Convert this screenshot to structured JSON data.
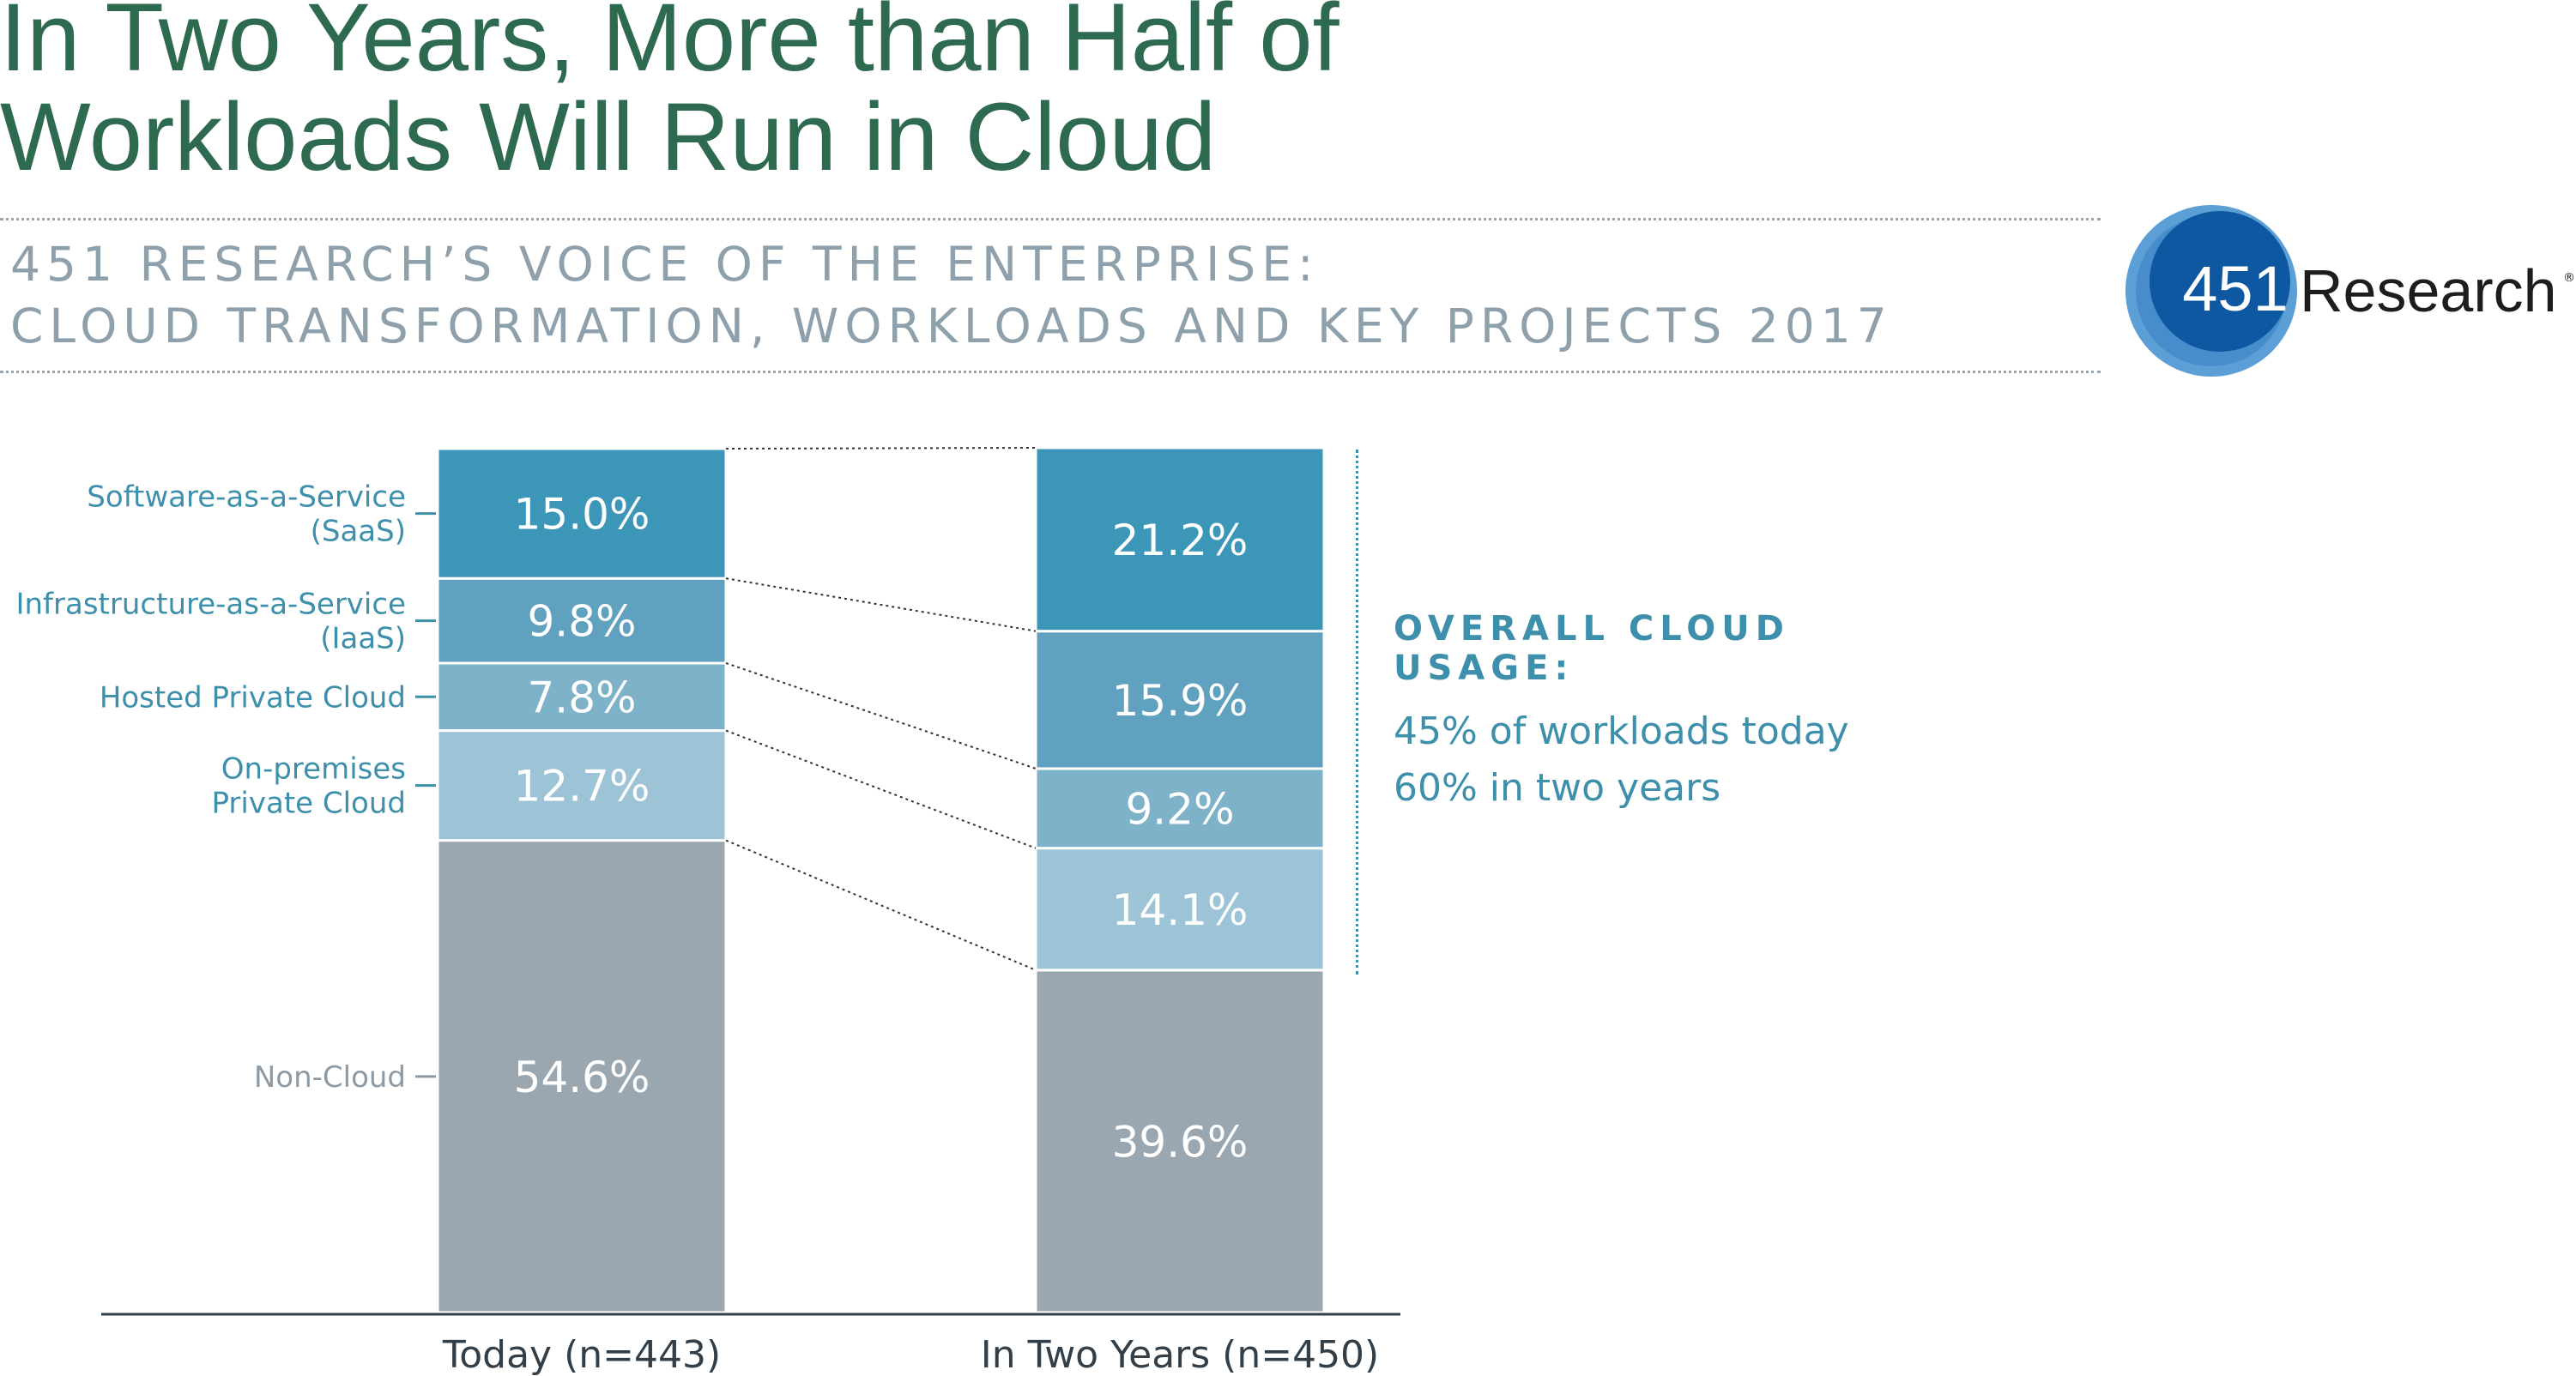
{
  "header": {
    "title_line1": "In Two Years, More than Half of",
    "title_line2": "Workloads Will Run in Cloud",
    "subtitle_line1": "451 RESEARCH’S VOICE OF THE ENTERPRISE:",
    "subtitle_line2": "CLOUD TRANSFORMATION, WORKLOADS AND KEY PROJECTS 2017"
  },
  "logo": {
    "number": "451",
    "word": "Research",
    "reg_mark": "®",
    "colors": {
      "outer": "#5c9fd6",
      "inner": "#0d58a0"
    }
  },
  "callout": {
    "heading_line1": "OVERALL CLOUD",
    "heading_line2": "USAGE:",
    "line1": "45% of workloads today",
    "line2": "60% in two years"
  },
  "chart_data": {
    "type": "bar",
    "stacked": true,
    "categories": [
      "Today (n=443)",
      "In Two Years (n=450)"
    ],
    "series": [
      {
        "name": "Non-Cloud",
        "values": [
          54.6,
          39.6
        ],
        "labels": [
          "54.6%",
          "39.6%"
        ],
        "color": "#9ba7b0",
        "label_color": "#8d9aa4"
      },
      {
        "name": "On-premises Private Cloud",
        "values": [
          12.7,
          14.1
        ],
        "labels": [
          "12.7%",
          "14.1%"
        ],
        "color": "#9dc4d6",
        "label_color": "#3d8fab"
      },
      {
        "name": "Hosted Private Cloud",
        "values": [
          7.8,
          9.2
        ],
        "labels": [
          "7.8%",
          "9.2%"
        ],
        "color": "#7db2c9",
        "label_color": "#3d8fab"
      },
      {
        "name": "Infrastructure-as-a-Service (IaaS)",
        "values": [
          9.8,
          15.9
        ],
        "labels": [
          "9.8%",
          "15.9%"
        ],
        "color": "#5fa1be",
        "label_color": "#3d8fab"
      },
      {
        "name": "Software-as-a-Service (SaaS)",
        "values": [
          15.0,
          21.2
        ],
        "labels": [
          "15.0%",
          "21.2%"
        ],
        "color": "#3b96b8",
        "label_color": "#3d8fab"
      }
    ],
    "category_labels": {
      "saas": [
        "Software-as-a-Service",
        "(SaaS)"
      ],
      "iaas": [
        "Infrastructure-as-a-Service",
        "(IaaS)"
      ],
      "hosted": [
        "Hosted Private Cloud"
      ],
      "onprem": [
        "On-premises",
        "Private Cloud"
      ],
      "noncloud": [
        "Non-Cloud"
      ]
    },
    "ylim": [
      0,
      100
    ],
    "legend": "left",
    "grid": false
  }
}
